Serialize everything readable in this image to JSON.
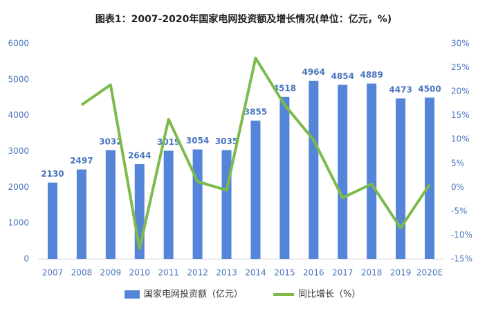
{
  "chart_data": {
    "type": "bar-line",
    "title": "图表1：2007-2020年国家电网投资额及增长情况(单位：亿元，%)",
    "categories": [
      "2007",
      "2008",
      "2009",
      "2010",
      "2011",
      "2012",
      "2013",
      "2014",
      "2015",
      "2016",
      "2017",
      "2018",
      "2019",
      "2020E"
    ],
    "series": [
      {
        "name": "国家电网投资额（亿元）",
        "type": "bar",
        "color": "#5585d8",
        "values": [
          2130,
          2497,
          3032,
          2644,
          3019,
          3054,
          3035,
          3855,
          4518,
          4964,
          4854,
          4889,
          4473,
          4500
        ]
      },
      {
        "name": "同比增长（%）",
        "type": "line",
        "axis": "y2",
        "color": "#7cbb4b",
        "values": [
          null,
          17.2,
          21.4,
          -12.8,
          14.2,
          1.2,
          -0.6,
          27.0,
          17.2,
          9.9,
          -2.2,
          0.7,
          -8.5,
          0.6
        ]
      }
    ],
    "ylim": [
      0,
      6000
    ],
    "yticks": [
      0,
      1000,
      2000,
      3000,
      4000,
      5000,
      6000
    ],
    "y2lim": [
      -15,
      30
    ],
    "y2ticks": [
      {
        "value": -15,
        "label": "-15%"
      },
      {
        "value": -10,
        "label": "-10%"
      },
      {
        "value": -5,
        "label": "-5%"
      },
      {
        "value": 0,
        "label": "0%"
      },
      {
        "value": 5,
        "label": "5%"
      },
      {
        "value": 10,
        "label": "10%"
      },
      {
        "value": 15,
        "label": "15%"
      },
      {
        "value": 20,
        "label": "20%"
      },
      {
        "value": 25,
        "label": "25%"
      },
      {
        "value": 30,
        "label": "30%"
      }
    ]
  }
}
